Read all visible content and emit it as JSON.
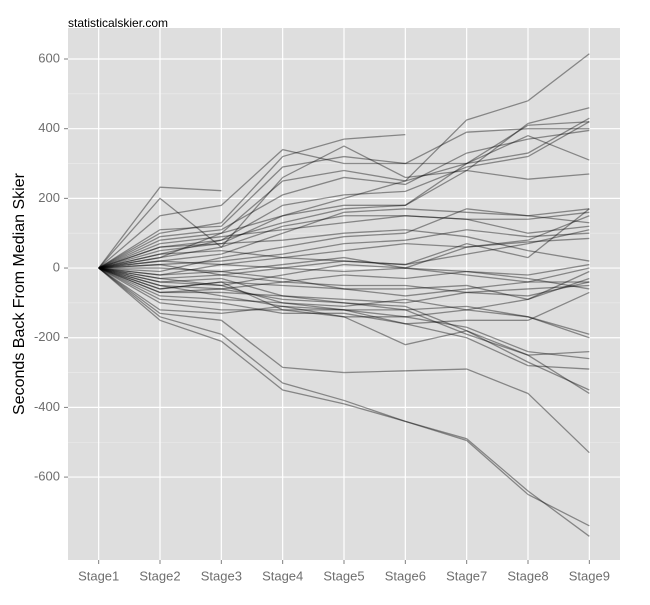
{
  "chart_data": {
    "type": "line",
    "source": "statisticalskier.com",
    "y_label": "Seconds Back From Median Skier",
    "categories": [
      "Stage1",
      "Stage2",
      "Stage3",
      "Stage4",
      "Stage5",
      "Stage6",
      "Stage7",
      "Stage8",
      "Stage9"
    ],
    "color": "#000000",
    "line_alpha": 0.4,
    "background": "#dedede",
    "grid": true,
    "ylim": [
      -838,
      689
    ],
    "yticks": [
      -600,
      -400,
      -200,
      0,
      200,
      400,
      600
    ],
    "series": [
      {
        "values": [
          0,
          30,
          100,
          150,
          200,
          250,
          425,
          480,
          615
        ]
      },
      {
        "values": [
          0,
          -140,
          -190,
          -330,
          -380,
          -440,
          -490,
          -640,
          -770
        ]
      },
      {
        "values": [
          0,
          -150,
          -210,
          -350,
          -390,
          -440,
          -495,
          -650,
          -740
        ]
      },
      {
        "values": [
          0,
          -130,
          -150,
          -285,
          -300,
          -295,
          -290,
          -360,
          -530
        ]
      },
      {
        "values": [
          0,
          232,
          222,
          null,
          null,
          null,
          null,
          null,
          null
        ]
      },
      {
        "values": [
          0,
          100,
          130,
          320,
          370,
          383,
          null,
          null,
          null
        ]
      },
      {
        "values": [
          0,
          150,
          180,
          340,
          300,
          300,
          300,
          410,
          420
        ]
      },
      {
        "values": [
          0,
          200,
          60,
          260,
          350,
          260,
          280,
          415,
          460
        ]
      },
      {
        "values": [
          0,
          110,
          120,
          290,
          320,
          300,
          390,
          400,
          400
        ]
      },
      {
        "values": [
          0,
          80,
          100,
          250,
          280,
          250,
          300,
          330,
          430
        ]
      },
      {
        "values": [
          0,
          60,
          80,
          180,
          210,
          220,
          290,
          320,
          420
        ]
      },
      {
        "values": [
          0,
          50,
          70,
          150,
          180,
          180,
          300,
          380,
          310
        ]
      },
      {
        "values": [
          0,
          40,
          80,
          130,
          170,
          180,
          280,
          255,
          270
        ]
      },
      {
        "values": [
          0,
          90,
          110,
          210,
          260,
          240,
          330,
          370,
          395
        ]
      },
      {
        "values": [
          0,
          20,
          40,
          100,
          160,
          170,
          160,
          150,
          170
        ]
      },
      {
        "values": [
          0,
          30,
          60,
          120,
          150,
          150,
          140,
          140,
          160
        ]
      },
      {
        "values": [
          0,
          -10,
          30,
          60,
          90,
          100,
          170,
          150,
          130
        ]
      },
      {
        "values": [
          0,
          10,
          20,
          40,
          70,
          80,
          110,
          90,
          100
        ]
      },
      {
        "values": [
          0,
          -20,
          10,
          30,
          50,
          70,
          60,
          75,
          85
        ]
      },
      {
        "values": [
          0,
          0,
          -10,
          10,
          30,
          0,
          60,
          80,
          150
        ]
      },
      {
        "values": [
          0,
          40,
          50,
          30,
          20,
          10,
          70,
          30,
          170
        ]
      },
      {
        "values": [
          0,
          -30,
          -20,
          0,
          20,
          10,
          40,
          70,
          110
        ]
      },
      {
        "values": [
          0,
          -40,
          -50,
          -20,
          10,
          0,
          -10,
          -30,
          -60
        ]
      },
      {
        "values": [
          0,
          -50,
          -60,
          -40,
          -20,
          -30,
          -10,
          -20,
          10
        ]
      },
      {
        "values": [
          0,
          -60,
          -40,
          -50,
          -60,
          -60,
          -50,
          -90,
          -10
        ]
      },
      {
        "values": [
          0,
          -70,
          -70,
          -80,
          -90,
          -100,
          -70,
          -60,
          -50
        ]
      },
      {
        "values": [
          0,
          -80,
          -90,
          -100,
          -110,
          -90,
          -120,
          -90,
          -30
        ]
      },
      {
        "values": [
          0,
          -60,
          -40,
          -120,
          -120,
          -120,
          -110,
          -140,
          -190
        ]
      },
      {
        "values": [
          0,
          -90,
          -100,
          -130,
          -130,
          -160,
          -150,
          -150,
          -70
        ]
      },
      {
        "values": [
          0,
          -50,
          -80,
          -110,
          -140,
          -220,
          -180,
          -250,
          -240
        ]
      },
      {
        "values": [
          0,
          -100,
          -120,
          -120,
          -140,
          -140,
          -170,
          -240,
          -260
        ]
      },
      {
        "values": [
          0,
          -120,
          -130,
          -110,
          -120,
          -160,
          -200,
          -280,
          -290
        ]
      },
      {
        "values": [
          0,
          -70,
          -60,
          -90,
          -100,
          -110,
          -180,
          -270,
          -350
        ]
      },
      {
        "values": [
          0,
          -40,
          -30,
          -80,
          -100,
          -120,
          -190,
          -250,
          -360
        ]
      },
      {
        "values": [
          0,
          -30,
          -50,
          -100,
          -120,
          -140,
          -120,
          -140,
          -200
        ]
      },
      {
        "values": [
          0,
          10,
          -20,
          -40,
          -50,
          -50,
          -70,
          -80,
          -40
        ]
      },
      {
        "values": [
          0,
          20,
          10,
          0,
          -10,
          0,
          -20,
          -40,
          0
        ]
      },
      {
        "values": [
          0,
          60,
          70,
          80,
          100,
          110,
          90,
          50,
          20
        ]
      },
      {
        "values": [
          0,
          70,
          90,
          110,
          130,
          150,
          140,
          100,
          120
        ]
      },
      {
        "values": [
          0,
          -20,
          -10,
          -30,
          -60,
          -80,
          -60,
          -40,
          -40
        ]
      }
    ]
  }
}
